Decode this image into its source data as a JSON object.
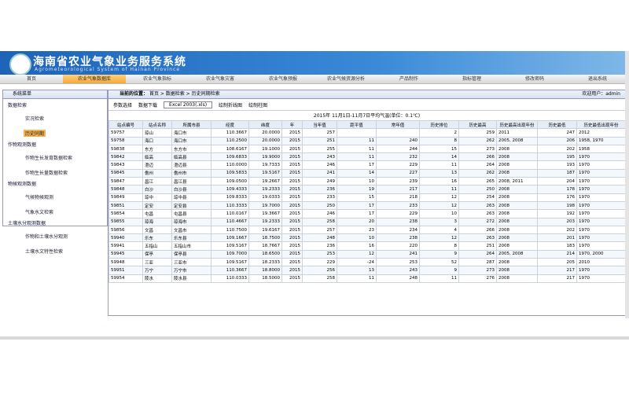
{
  "header": {
    "title": "海南省农业气象业务服务系统",
    "subtitle": "Agrometeorological System of Hainan Province"
  },
  "nav": [
    "首页",
    "农业气象数据库",
    "农业气象指标",
    "农业气象灾害",
    "农业气象预报",
    "农业气候资源分析",
    "产品制作",
    "指标管理",
    "修改密码",
    "退出系统"
  ],
  "sidebar": {
    "title": "系统菜单",
    "groups": [
      {
        "label": "数据检索",
        "items": [
          "实况检索",
          "历史同期"
        ]
      },
      {
        "label": "作物观测数据",
        "items": [
          "作物生长发育数据检索",
          "作物生长量数据检索"
        ]
      },
      {
        "label": "物候观测数据",
        "items": [
          "气候物候观测",
          "气象水文检索"
        ]
      },
      {
        "label": "土壤水分观测数据",
        "items": [
          "作物和土壤水分观测",
          "土壤水文特性检索"
        ]
      }
    ]
  },
  "breadcrumb": {
    "label": "当前的位置：",
    "path": "首页 > 数据检索 > 历史同期检索"
  },
  "user": "欢迎用户：admin",
  "toolbar": {
    "buttons": [
      "参数选择",
      "数据下载"
    ],
    "format": "Excel 2003(.xls)",
    "charts": [
      "绘制折线图",
      "绘制柱图"
    ]
  },
  "table": {
    "caption": "2015年 11月1日-11月7日平均气温(单位：0.1℃)",
    "columns": [
      "站点编号",
      "站点名称",
      "所属市县",
      "经度",
      "纬度",
      "年",
      "当年值",
      "距平值",
      "常年值",
      "历史排位",
      "历史最高",
      "历史最高出现年份",
      "历史最低",
      "历史最低出现年份"
    ],
    "rows": [
      [
        "59757",
        "琼山",
        "海口市",
        "110.3667",
        "20.0000",
        "2015",
        "257",
        null,
        null,
        "2",
        "259",
        "2011",
        "247",
        "2012"
      ],
      [
        "59758",
        "海口",
        "海口市",
        "110.2500",
        "20.0000",
        "2015",
        "251",
        "11",
        "240",
        "8",
        "262",
        "2005, 2008",
        "206",
        "1958, 1970"
      ],
      [
        "59838",
        "东方",
        "东方市",
        "108.6167",
        "19.1000",
        "2015",
        "255",
        "11",
        "244",
        "15",
        "273",
        "2008",
        "202",
        "1958"
      ],
      [
        "59842",
        "临高",
        "临高县",
        "109.6833",
        "19.9000",
        "2015",
        "243",
        "11",
        "232",
        "14",
        "266",
        "2008",
        "195",
        "1970"
      ],
      [
        "59843",
        "澄迈",
        "澄迈县",
        "110.0000",
        "19.7333",
        "2015",
        "246",
        "17",
        "229",
        "11",
        "264",
        "2008",
        "193",
        "1970"
      ],
      [
        "59845",
        "儋州",
        "儋州市",
        "109.5833",
        "19.5167",
        "2015",
        "241",
        "14",
        "227",
        "13",
        "262",
        "2008",
        "187",
        "1970"
      ],
      [
        "59847",
        "昌江",
        "昌江县",
        "109.0500",
        "19.2667",
        "2015",
        "249",
        "10",
        "239",
        "16",
        "265",
        "2008, 2011",
        "204",
        "1970"
      ],
      [
        "59848",
        "白沙",
        "白沙县",
        "109.4333",
        "19.2333",
        "2015",
        "236",
        "19",
        "217",
        "11",
        "250",
        "2008",
        "178",
        "1970"
      ],
      [
        "59849",
        "琼中",
        "琼中县",
        "109.8333",
        "19.0333",
        "2015",
        "233",
        "15",
        "218",
        "12",
        "254",
        "2008",
        "176",
        "1970"
      ],
      [
        "59851",
        "定安",
        "定安县",
        "110.3333",
        "19.7000",
        "2015",
        "250",
        "17",
        "233",
        "12",
        "263",
        "2008",
        "198",
        "1970"
      ],
      [
        "59854",
        "屯昌",
        "屯昌县",
        "110.0167",
        "19.3667",
        "2015",
        "246",
        "17",
        "229",
        "10",
        "263",
        "2008",
        "192",
        "1970"
      ],
      [
        "59855",
        "琼海",
        "琼海市",
        "110.4667",
        "19.2333",
        "2015",
        "258",
        "20",
        "238",
        "3",
        "272",
        "2008",
        "203",
        "1970"
      ],
      [
        "59856",
        "文昌",
        "文昌市",
        "110.7500",
        "19.6167",
        "2015",
        "257",
        "23",
        "234",
        "4",
        "266",
        "2008",
        "202",
        "1970"
      ],
      [
        "59940",
        "乐东",
        "乐东县",
        "109.1667",
        "18.7500",
        "2015",
        "248",
        "10",
        "238",
        "12",
        "263",
        "2008",
        "201",
        "1970"
      ],
      [
        "59941",
        "五指山",
        "五指山市",
        "109.5167",
        "18.7667",
        "2015",
        "236",
        "16",
        "220",
        "8",
        "251",
        "2008",
        "183",
        "1970"
      ],
      [
        "59945",
        "保亭",
        "保亭县",
        "109.7000",
        "18.6500",
        "2015",
        "253",
        "12",
        "241",
        "9",
        "264",
        "2005, 2008",
        "214",
        "1970, 2000"
      ],
      [
        "59948",
        "三亚",
        "三亚市",
        "109.5167",
        "18.2333",
        "2015",
        "229",
        "-24",
        "253",
        "52",
        "287",
        "2008",
        "205",
        "2010"
      ],
      [
        "59951",
        "万宁",
        "万宁市",
        "110.3667",
        "18.8000",
        "2015",
        "256",
        "13",
        "243",
        "9",
        "273",
        "2008",
        "217",
        "1970"
      ],
      [
        "59954",
        "陵水",
        "陵水县",
        "110.0333",
        "18.5000",
        "2015",
        "258",
        "11",
        "248",
        "11",
        "276",
        "2008",
        "217",
        "1970"
      ]
    ]
  }
}
